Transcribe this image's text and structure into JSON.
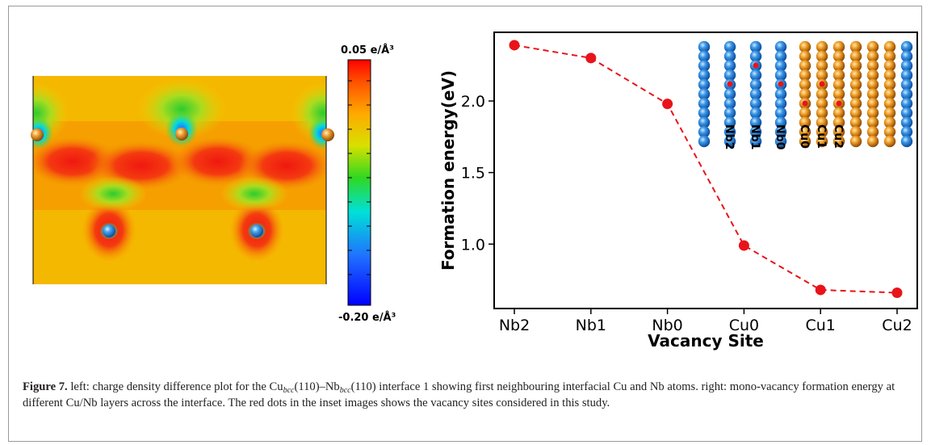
{
  "colorbar": {
    "max_label": "0.05 e/Å³",
    "min_label": "-0.20 e/Å³"
  },
  "chart_data": {
    "type": "line",
    "categories": [
      "Nb2",
      "Nb1",
      "Nb0",
      "Cu0",
      "Cu1",
      "Cu2"
    ],
    "values": [
      2.39,
      2.3,
      1.98,
      0.99,
      0.68,
      0.66
    ],
    "xlabel": "Vacancy Site",
    "ylabel": "Formation energy(eV)",
    "yticks": [
      "1.0",
      "1.5",
      "2.0"
    ],
    "ylim": [
      0.55,
      2.48
    ],
    "color": "#e8141a",
    "line_style": "dashed"
  },
  "inset": {
    "column_labels": [
      "Nb2",
      "Nb1",
      "Nb0",
      "Cu0",
      "Cu1",
      "Cu2"
    ]
  },
  "caption": {
    "figure_label": "Figure 7.",
    "text_1": " left: charge density difference plot for the Cu",
    "sub_1": "bcc",
    "text_2": "(110)–Nb",
    "sub_2": "bcc",
    "text_3": "(110) interface 1 showing first neighbouring interfacial Cu and Nb atoms. right: mono-vacancy formation energy at different Cu/Nb layers across the interface. The red dots in the inset images shows the vacancy sites considered in this study."
  }
}
